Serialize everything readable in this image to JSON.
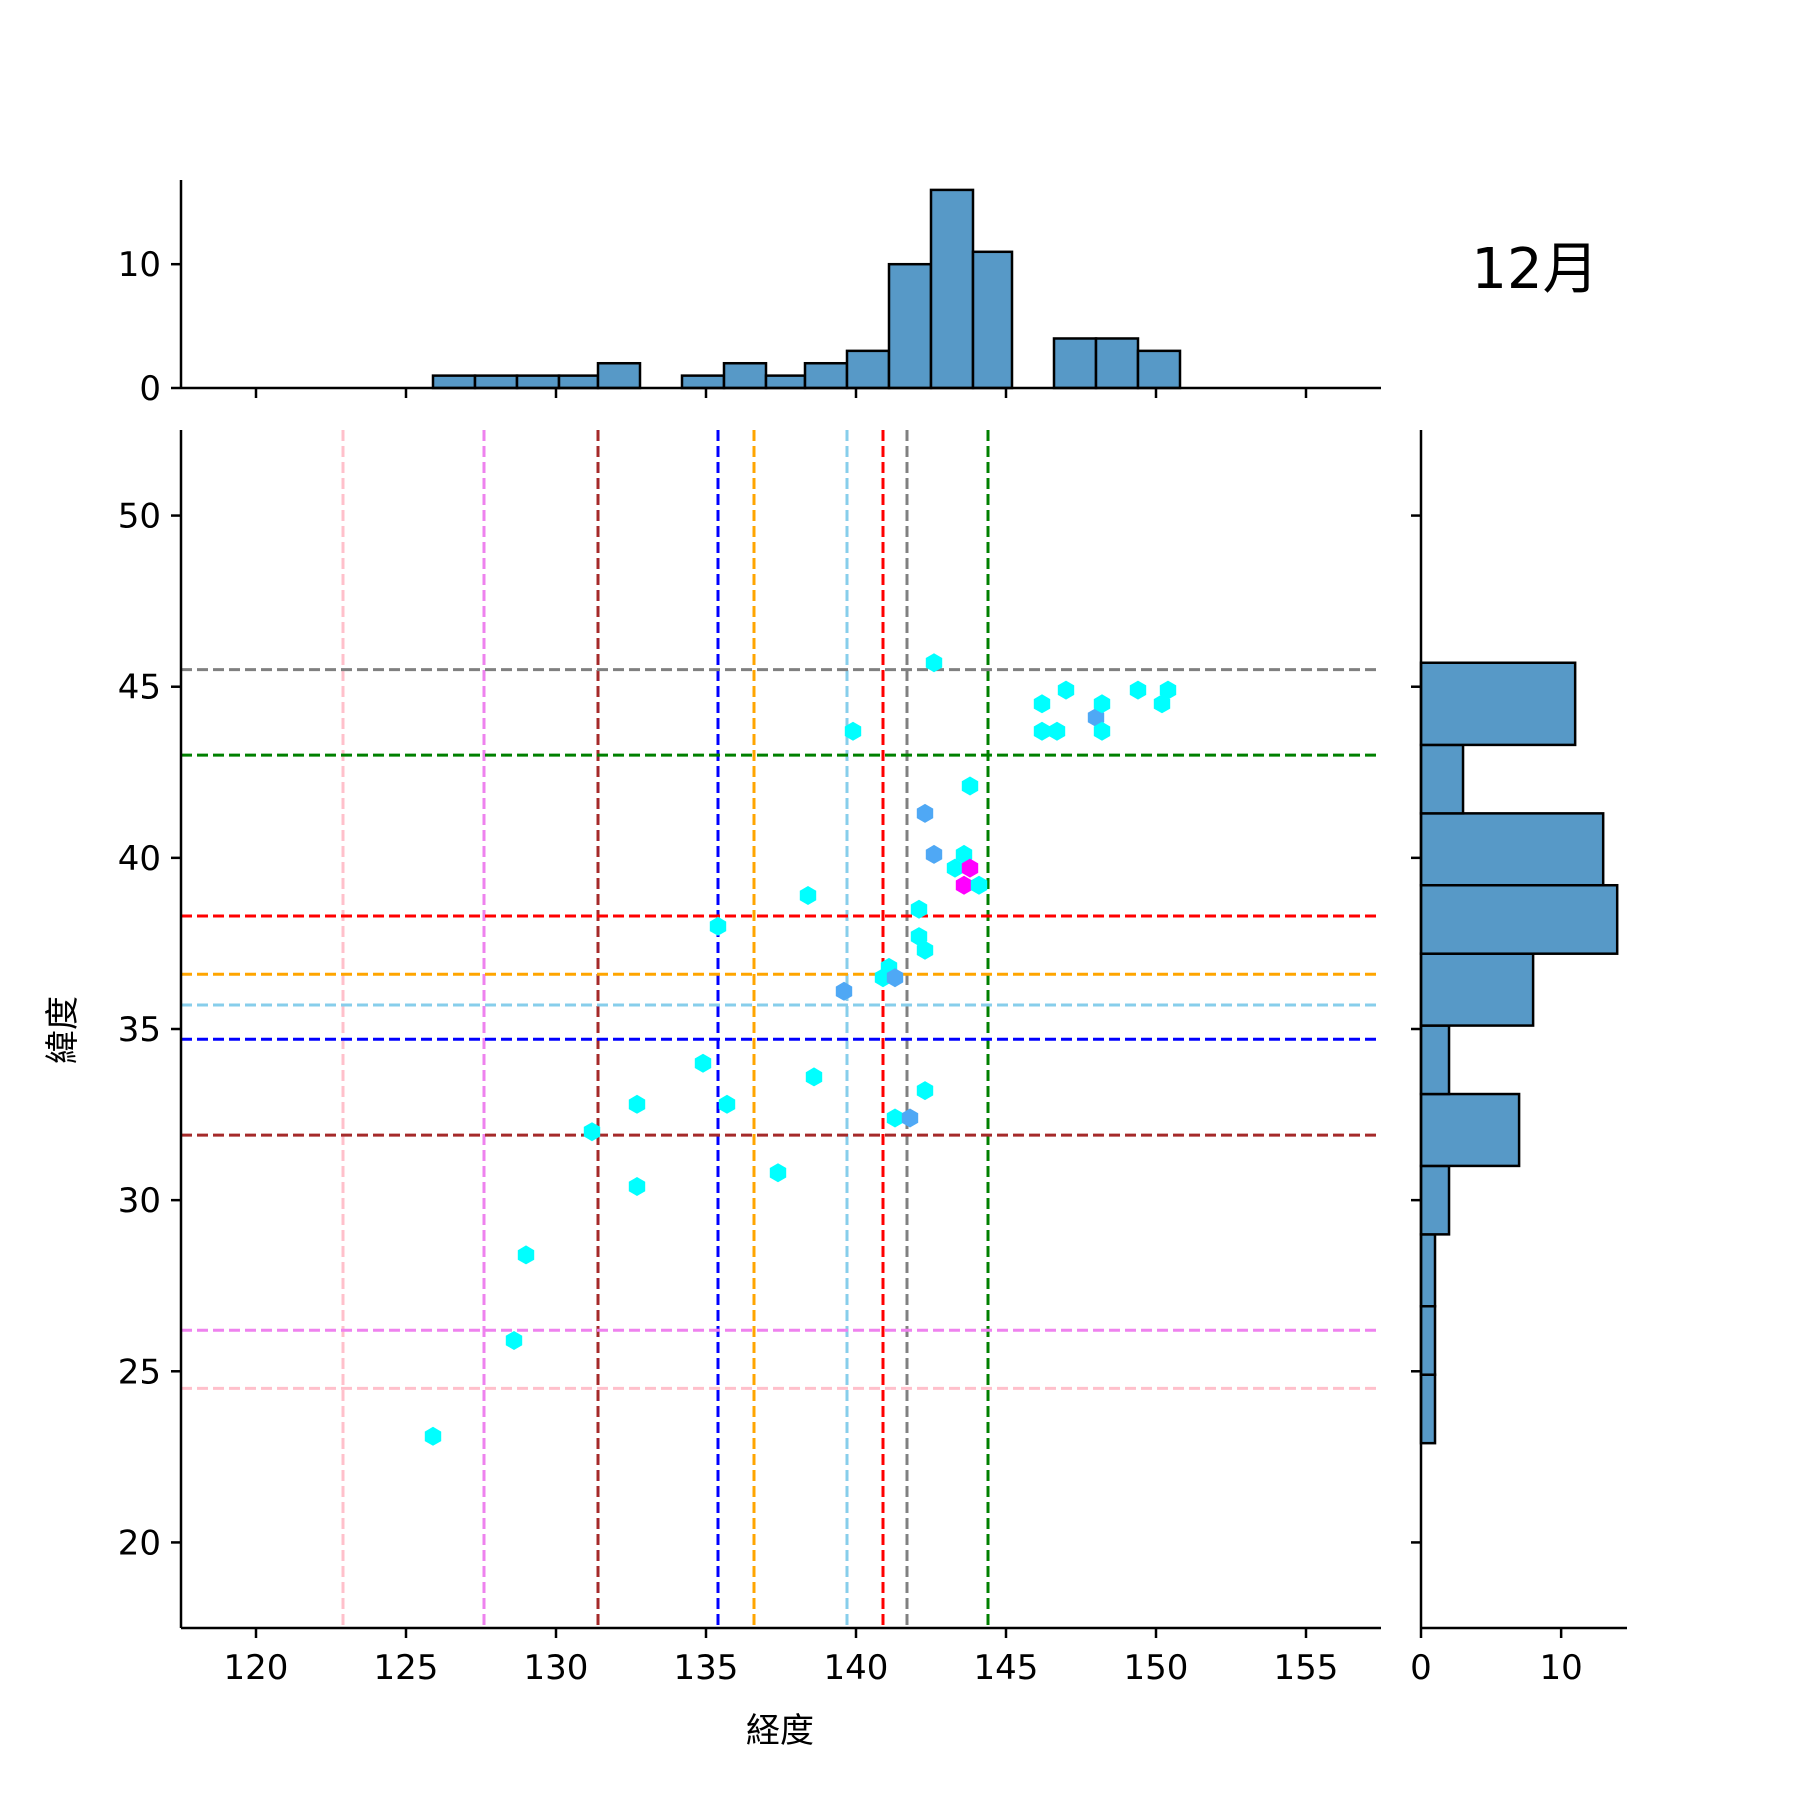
{
  "chart_data": {
    "type": "scatter",
    "title": "12月",
    "xlabel": "経度",
    "ylabel": "緯度",
    "xlim": [
      117.5,
      157.5
    ],
    "ylim": [
      17.5,
      52.5
    ],
    "xticks": [
      120,
      125,
      130,
      135,
      140,
      145,
      150,
      155
    ],
    "yticks": [
      20,
      25,
      30,
      35,
      40,
      45,
      50
    ],
    "colors": {
      "hist_fill": "#5799c7",
      "hex_low": "#00ffff",
      "hex_mid": "#4fa8f5",
      "hex_high": "#ff00ff"
    },
    "points": [
      {
        "x": 125.9,
        "y": 23.1,
        "level": "low"
      },
      {
        "x": 128.6,
        "y": 25.9,
        "level": "low"
      },
      {
        "x": 129.0,
        "y": 28.4,
        "level": "low"
      },
      {
        "x": 131.2,
        "y": 32.0,
        "level": "low"
      },
      {
        "x": 132.7,
        "y": 30.4,
        "level": "low"
      },
      {
        "x": 132.7,
        "y": 32.8,
        "level": "low"
      },
      {
        "x": 134.9,
        "y": 34.0,
        "level": "low"
      },
      {
        "x": 135.4,
        "y": 38.0,
        "level": "low"
      },
      {
        "x": 135.7,
        "y": 32.8,
        "level": "low"
      },
      {
        "x": 137.4,
        "y": 30.8,
        "level": "low"
      },
      {
        "x": 138.4,
        "y": 38.9,
        "level": "low"
      },
      {
        "x": 138.6,
        "y": 33.6,
        "level": "low"
      },
      {
        "x": 139.6,
        "y": 36.1,
        "level": "mid"
      },
      {
        "x": 139.9,
        "y": 43.7,
        "level": "low"
      },
      {
        "x": 140.9,
        "y": 36.5,
        "level": "low"
      },
      {
        "x": 141.1,
        "y": 36.8,
        "level": "low"
      },
      {
        "x": 141.3,
        "y": 36.5,
        "level": "mid"
      },
      {
        "x": 141.3,
        "y": 32.4,
        "level": "low"
      },
      {
        "x": 141.8,
        "y": 32.4,
        "level": "mid"
      },
      {
        "x": 142.1,
        "y": 37.7,
        "level": "low"
      },
      {
        "x": 142.1,
        "y": 38.5,
        "level": "low"
      },
      {
        "x": 142.3,
        "y": 37.3,
        "level": "low"
      },
      {
        "x": 142.3,
        "y": 33.2,
        "level": "low"
      },
      {
        "x": 142.3,
        "y": 41.3,
        "level": "mid"
      },
      {
        "x": 142.6,
        "y": 40.1,
        "level": "mid"
      },
      {
        "x": 142.6,
        "y": 45.7,
        "level": "low"
      },
      {
        "x": 143.3,
        "y": 39.7,
        "level": "low"
      },
      {
        "x": 143.6,
        "y": 40.1,
        "level": "low"
      },
      {
        "x": 143.6,
        "y": 39.2,
        "level": "high"
      },
      {
        "x": 143.8,
        "y": 39.7,
        "level": "high"
      },
      {
        "x": 143.8,
        "y": 42.1,
        "level": "low"
      },
      {
        "x": 144.1,
        "y": 39.2,
        "level": "low"
      },
      {
        "x": 146.2,
        "y": 44.5,
        "level": "low"
      },
      {
        "x": 146.2,
        "y": 43.7,
        "level": "low"
      },
      {
        "x": 146.7,
        "y": 43.7,
        "level": "low"
      },
      {
        "x": 147.0,
        "y": 44.9,
        "level": "low"
      },
      {
        "x": 148.0,
        "y": 44.1,
        "level": "mid"
      },
      {
        "x": 148.2,
        "y": 44.5,
        "level": "low"
      },
      {
        "x": 148.2,
        "y": 43.7,
        "level": "low"
      },
      {
        "x": 149.4,
        "y": 44.9,
        "level": "low"
      },
      {
        "x": 150.2,
        "y": 44.5,
        "level": "low"
      },
      {
        "x": 150.4,
        "y": 44.9,
        "level": "low"
      }
    ],
    "vlines": [
      {
        "x": 122.9,
        "color": "#ffc0cb"
      },
      {
        "x": 127.6,
        "color": "#ee82ee"
      },
      {
        "x": 131.4,
        "color": "#a52a2a"
      },
      {
        "x": 135.4,
        "color": "#0000ff"
      },
      {
        "x": 136.6,
        "color": "#ffa500"
      },
      {
        "x": 139.7,
        "color": "#87ceeb"
      },
      {
        "x": 140.9,
        "color": "#ff0000"
      },
      {
        "x": 141.7,
        "color": "#808080"
      },
      {
        "x": 144.4,
        "color": "#008000"
      }
    ],
    "hlines": [
      {
        "y": 24.5,
        "color": "#ffc0cb"
      },
      {
        "y": 26.2,
        "color": "#ee82ee"
      },
      {
        "y": 31.9,
        "color": "#a52a2a"
      },
      {
        "y": 34.7,
        "color": "#0000ff"
      },
      {
        "y": 36.6,
        "color": "#ffa500"
      },
      {
        "y": 35.7,
        "color": "#87ceeb"
      },
      {
        "y": 38.3,
        "color": "#ff0000"
      },
      {
        "y": 45.5,
        "color": "#808080"
      },
      {
        "y": 43.0,
        "color": "#008000"
      }
    ],
    "top_hist": {
      "yticks": [
        0,
        10
      ],
      "ylim": [
        0,
        16.8
      ],
      "bins": [
        {
          "x0": 125.9,
          "x1": 127.3,
          "count": 1
        },
        {
          "x0": 127.3,
          "x1": 128.7,
          "count": 1
        },
        {
          "x0": 128.7,
          "x1": 130.1,
          "count": 1
        },
        {
          "x0": 130.1,
          "x1": 131.4,
          "count": 1
        },
        {
          "x0": 131.4,
          "x1": 132.8,
          "count": 2
        },
        {
          "x0": 132.8,
          "x1": 134.2,
          "count": 0
        },
        {
          "x0": 134.2,
          "x1": 135.6,
          "count": 1
        },
        {
          "x0": 135.6,
          "x1": 137.0,
          "count": 2
        },
        {
          "x0": 137.0,
          "x1": 138.3,
          "count": 1
        },
        {
          "x0": 138.3,
          "x1": 139.7,
          "count": 2
        },
        {
          "x0": 139.7,
          "x1": 141.1,
          "count": 3
        },
        {
          "x0": 141.1,
          "x1": 142.5,
          "count": 10
        },
        {
          "x0": 142.5,
          "x1": 143.9,
          "count": 16
        },
        {
          "x0": 143.9,
          "x1": 145.2,
          "count": 11
        },
        {
          "x0": 145.2,
          "x1": 146.6,
          "count": 0
        },
        {
          "x0": 146.6,
          "x1": 148.0,
          "count": 4
        },
        {
          "x0": 148.0,
          "x1": 149.4,
          "count": 4
        },
        {
          "x0": 149.4,
          "x1": 150.8,
          "count": 3
        }
      ]
    },
    "right_hist": {
      "xticks": [
        0,
        10
      ],
      "xlim": [
        0,
        14.7
      ],
      "bins": [
        {
          "y0": 22.9,
          "y1": 24.9,
          "count": 1
        },
        {
          "y0": 24.9,
          "y1": 26.9,
          "count": 1
        },
        {
          "y0": 26.9,
          "y1": 29.0,
          "count": 1
        },
        {
          "y0": 29.0,
          "y1": 31.0,
          "count": 2
        },
        {
          "y0": 31.0,
          "y1": 33.1,
          "count": 7
        },
        {
          "y0": 33.1,
          "y1": 35.1,
          "count": 2
        },
        {
          "y0": 35.1,
          "y1": 37.2,
          "count": 8
        },
        {
          "y0": 37.2,
          "y1": 39.2,
          "count": 14
        },
        {
          "y0": 39.2,
          "y1": 41.3,
          "count": 13
        },
        {
          "y0": 41.3,
          "y1": 43.3,
          "count": 3
        },
        {
          "y0": 43.3,
          "y1": 45.7,
          "count": 11
        }
      ]
    }
  }
}
